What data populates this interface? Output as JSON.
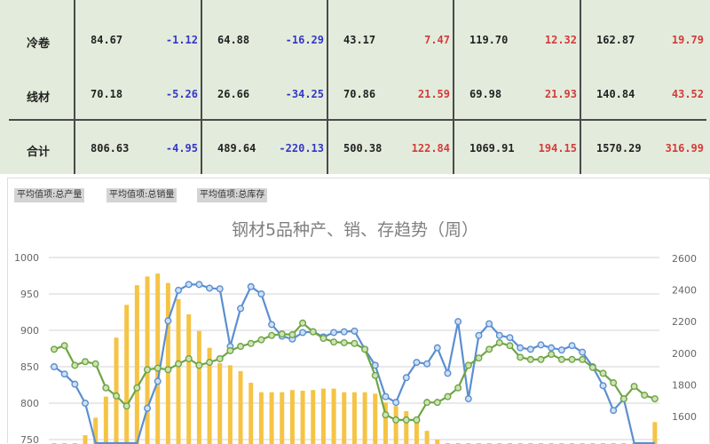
{
  "table": {
    "rows": [
      {
        "label": "冷卷",
        "cells": [
          [
            "84.67",
            "-1.12"
          ],
          [
            "64.88",
            "-16.29"
          ],
          [
            "43.17",
            "7.47"
          ],
          [
            "119.70",
            "12.32"
          ],
          [
            "162.87",
            "19.79"
          ]
        ]
      },
      {
        "label": "线材",
        "cells": [
          [
            "70.18",
            "-5.26"
          ],
          [
            "26.66",
            "-34.25"
          ],
          [
            "70.86",
            "21.59"
          ],
          [
            "69.98",
            "21.93"
          ],
          [
            "140.84",
            "43.52"
          ]
        ]
      },
      {
        "label": "合计",
        "cells": [
          [
            "806.63",
            "-4.95"
          ],
          [
            "489.64",
            "-220.13"
          ],
          [
            "500.38",
            "122.84"
          ],
          [
            "1069.91",
            "194.15"
          ],
          [
            "1570.29",
            "316.99"
          ]
        ]
      }
    ],
    "colors": {
      "negative": "#3636c8",
      "positive": "#d63a3a",
      "background": "#e3ecdc"
    }
  },
  "filters": [
    "平均值项:总产量",
    "平均值项:总销量",
    "平均值项:总库存"
  ],
  "chart_data": {
    "type": "bar+line",
    "title": "钢材5品种产、销、存趋势（周）",
    "left_axis": {
      "ticks": [
        1000,
        950,
        900,
        850,
        800,
        750
      ]
    },
    "right_axis": {
      "ticks": [
        2600,
        2400,
        2200,
        2000,
        1800,
        1600
      ]
    },
    "grid": true,
    "bars": {
      "color": "#f5c445",
      "values": [
        740,
        740,
        740,
        756,
        780,
        809,
        890,
        935,
        962,
        974,
        978,
        965,
        943,
        922,
        899,
        876,
        855,
        852,
        844,
        828,
        815,
        815,
        815,
        818,
        817,
        818,
        820,
        820,
        815,
        815,
        815,
        813,
        801,
        796,
        789,
        774,
        762,
        750,
        740,
        740,
        740,
        740,
        740,
        740,
        740,
        740,
        740,
        740,
        740,
        740,
        740,
        740,
        740,
        740,
        740,
        740,
        740,
        740,
        774
      ]
    },
    "series": [
      {
        "color": "#5b8fd0",
        "values": [
          850,
          840,
          826,
          800,
          720,
          700,
          700,
          700,
          730,
          793,
          830,
          913,
          955,
          963,
          963,
          958,
          957,
          878,
          930,
          960,
          950,
          908,
          892,
          888,
          897,
          898,
          891,
          897,
          898,
          899,
          874,
          852,
          809,
          801,
          835,
          856,
          854,
          876,
          841,
          912,
          806,
          893,
          909,
          893,
          890,
          876,
          874,
          880,
          876,
          873,
          879,
          870,
          850,
          824,
          790,
          806,
          738,
          700,
          700
        ]
      },
      {
        "color": "#6fa544",
        "values": [
          874,
          879,
          852,
          857,
          854,
          821,
          810,
          796,
          821,
          846,
          848,
          846,
          854,
          861,
          852,
          856,
          861,
          872,
          878,
          882,
          887,
          893,
          895,
          894,
          910,
          898,
          889,
          884,
          883,
          882,
          874,
          838,
          784,
          777,
          777,
          777,
          801,
          801,
          809,
          821,
          852,
          862,
          874,
          883,
          879,
          863,
          860,
          860,
          867,
          860,
          860,
          860,
          849,
          841,
          828,
          806,
          823,
          811,
          806
        ]
      }
    ]
  }
}
